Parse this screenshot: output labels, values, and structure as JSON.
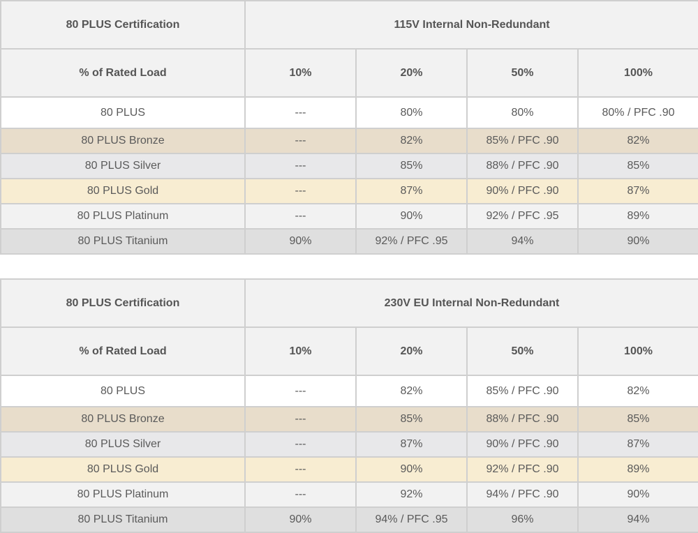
{
  "colors": {
    "header_bg": "#f2f2f2",
    "border": "#cfcfcf",
    "text": "#555555",
    "tier_backgrounds": {
      "80 PLUS": "#ffffff",
      "80 PLUS Bronze": "#e8ddcb",
      "80 PLUS Silver": "#e8e8ea",
      "80 PLUS Gold": "#f8edd2",
      "80 PLUS Platinum": "#f2f2f2",
      "80 PLUS Titanium": "#dfdfdf"
    }
  },
  "tables": [
    {
      "cert_header": "80 PLUS Certification",
      "title": "115V Internal Non-Redundant",
      "load_header": "% of Rated Load",
      "loads": [
        "10%",
        "20%",
        "50%",
        "100%"
      ],
      "rows": [
        {
          "tier": "80 PLUS",
          "values": [
            "---",
            "80%",
            "80%",
            "80% / PFC .90"
          ]
        },
        {
          "tier": "80 PLUS Bronze",
          "values": [
            "---",
            "82%",
            "85% / PFC .90",
            "82%"
          ]
        },
        {
          "tier": "80 PLUS Silver",
          "values": [
            "---",
            "85%",
            "88% / PFC .90",
            "85%"
          ]
        },
        {
          "tier": "80 PLUS Gold",
          "values": [
            "---",
            "87%",
            "90% / PFC .90",
            "87%"
          ]
        },
        {
          "tier": "80 PLUS Platinum",
          "values": [
            "---",
            "90%",
            "92% / PFC .95",
            "89%"
          ]
        },
        {
          "tier": "80 PLUS Titanium",
          "values": [
            "90%",
            "92% / PFC .95",
            "94%",
            "90%"
          ]
        }
      ]
    },
    {
      "cert_header": "80 PLUS Certification",
      "title": "230V EU Internal Non-Redundant",
      "load_header": "% of Rated Load",
      "loads": [
        "10%",
        "20%",
        "50%",
        "100%"
      ],
      "rows": [
        {
          "tier": "80 PLUS",
          "values": [
            "---",
            "82%",
            "85% / PFC .90",
            "82%"
          ]
        },
        {
          "tier": "80 PLUS Bronze",
          "values": [
            "---",
            "85%",
            "88% / PFC .90",
            "85%"
          ]
        },
        {
          "tier": "80 PLUS Silver",
          "values": [
            "---",
            "87%",
            "90% / PFC .90",
            "87%"
          ]
        },
        {
          "tier": "80 PLUS Gold",
          "values": [
            "---",
            "90%",
            "92% / PFC .90",
            "89%"
          ]
        },
        {
          "tier": "80 PLUS Platinum",
          "values": [
            "---",
            "92%",
            "94% / PFC .90",
            "90%"
          ]
        },
        {
          "tier": "80 PLUS Titanium",
          "values": [
            "90%",
            "94% / PFC .95",
            "96%",
            "94%"
          ]
        }
      ]
    }
  ]
}
